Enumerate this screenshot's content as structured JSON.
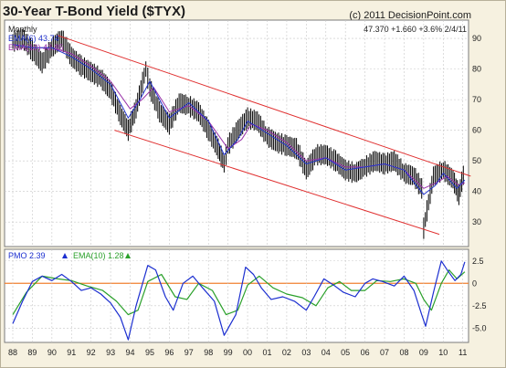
{
  "header": {
    "title": "30-Year T-Bond Yield ($TYX)",
    "copyright": "(c) 2011 DecisionPoint.com"
  },
  "price_panel": {
    "period": "Monthly",
    "ema_short_label": "EMA(6) 43.74",
    "ema_long_label": "EMA(10) 42.85",
    "quote": "47.370 +1.660 +3.6% 2/4/11"
  },
  "pmo_panel": {
    "pmo_label": "PMO 2.39",
    "ema_label": "EMA(10) 1.28"
  },
  "colors": {
    "background": "#f6f1e0",
    "plot_background": "#ffffff",
    "grid": "#c8c8c8",
    "price_bars": "#000000",
    "ema_short": "#2233cc",
    "ema_long": "#9933aa",
    "trend_channel": "#e03030",
    "pmo_line": "#1c2fd0",
    "pmo_signal": "#2aa02a",
    "zero_line": "#f08030"
  },
  "chart_data": [
    {
      "type": "line",
      "title": "30-Year T-Bond Yield ($TYX)",
      "subtitle": "Monthly",
      "x_tick_labels": [
        "88",
        "89",
        "90",
        "91",
        "92",
        "93",
        "94",
        "95",
        "96",
        "97",
        "98",
        "99",
        "00",
        "01",
        "02",
        "03",
        "04",
        "05",
        "06",
        "07",
        "08",
        "09",
        "10",
        "11"
      ],
      "y_tick_labels": [
        "30",
        "40",
        "50",
        "60",
        "70",
        "80",
        "90"
      ],
      "ylim": [
        22,
        96
      ],
      "grid": true,
      "series": [
        {
          "name": "$TYX",
          "x": [
            1988.0,
            1988.5,
            1989.0,
            1989.5,
            1990.0,
            1990.5,
            1991.0,
            1991.5,
            1992.0,
            1992.5,
            1993.0,
            1993.5,
            1993.9,
            1994.3,
            1994.8,
            1995.0,
            1995.5,
            1996.0,
            1996.5,
            1997.0,
            1997.5,
            1998.0,
            1998.5,
            1998.8,
            1999.0,
            1999.5,
            2000.0,
            2000.5,
            2001.0,
            2001.5,
            2002.0,
            2002.5,
            2003.0,
            2003.5,
            2004.0,
            2004.5,
            2005.0,
            2005.5,
            2006.0,
            2006.5,
            2007.0,
            2007.5,
            2008.0,
            2008.5,
            2008.9,
            2009.0,
            2009.5,
            2010.0,
            2010.5,
            2010.8,
            2011.1
          ],
          "values": [
            89,
            90,
            86,
            82,
            87,
            90,
            84,
            81,
            79,
            77,
            73,
            65,
            60,
            67,
            80,
            74,
            66,
            62,
            69,
            68,
            66,
            60,
            54,
            49,
            55,
            60,
            64,
            63,
            58,
            56,
            55,
            54,
            47,
            52,
            52,
            50,
            47,
            46,
            48,
            50,
            49,
            50,
            46,
            45,
            41,
            28,
            45,
            47,
            44,
            39,
            47.37
          ]
        },
        {
          "name": "EMA(6)",
          "x": [
            1988.0,
            1989.0,
            1990.0,
            1991.0,
            1992.0,
            1993.0,
            1993.9,
            1994.5,
            1995.0,
            1996.0,
            1997.0,
            1998.0,
            1998.8,
            1999.5,
            2000.0,
            2001.0,
            2002.0,
            2003.0,
            2004.0,
            2005.0,
            2006.0,
            2007.0,
            2008.0,
            2009.0,
            2009.6,
            2010.0,
            2010.7,
            2011.1
          ],
          "values": [
            88,
            87,
            87,
            84,
            80,
            75,
            64,
            70,
            76,
            64,
            69,
            63,
            52,
            57,
            63,
            59,
            55,
            49,
            51,
            47,
            48,
            49,
            47,
            39,
            42,
            46,
            41,
            43.74
          ]
        },
        {
          "name": "EMA(10)",
          "x": [
            1988.0,
            1989.0,
            1990.0,
            1991.0,
            1992.0,
            1993.0,
            1994.0,
            1994.6,
            1995.2,
            1996.0,
            1997.0,
            1998.0,
            1999.0,
            1999.7,
            2000.2,
            2001.0,
            2002.0,
            2003.0,
            2004.0,
            2005.0,
            2006.0,
            2007.0,
            2008.0,
            2009.0,
            2009.7,
            2010.2,
            2010.8,
            2011.1
          ],
          "values": [
            88,
            87,
            87,
            85,
            81,
            76,
            67,
            70,
            74,
            66,
            68,
            63,
            54,
            57,
            62,
            60,
            56,
            50,
            51,
            48,
            48,
            49,
            47,
            41,
            43,
            45,
            42,
            42.85
          ]
        },
        {
          "name": "Upper channel",
          "x": [
            1990.3,
            2011.4
          ],
          "values": [
            91,
            45
          ]
        },
        {
          "name": "Lower channel",
          "x": [
            1993.2,
            2009.8
          ],
          "values": [
            60,
            26
          ]
        }
      ]
    },
    {
      "type": "line",
      "title": "PMO",
      "x_tick_labels": [
        "88",
        "89",
        "90",
        "91",
        "92",
        "93",
        "94",
        "95",
        "96",
        "97",
        "98",
        "99",
        "00",
        "01",
        "02",
        "03",
        "04",
        "05",
        "06",
        "07",
        "08",
        "09",
        "10",
        "11"
      ],
      "y_tick_labels": [
        "2.5",
        "0",
        "-2.5",
        "-5.0"
      ],
      "ylim": [
        -6.6,
        3.8
      ],
      "grid": true,
      "series": [
        {
          "name": "PMO",
          "x": [
            1988.0,
            1988.5,
            1989.0,
            1989.5,
            1990.0,
            1990.5,
            1991.0,
            1991.5,
            1992.0,
            1992.5,
            1993.0,
            1993.5,
            1993.9,
            1994.3,
            1994.9,
            1995.3,
            1995.8,
            1996.2,
            1996.7,
            1997.2,
            1997.7,
            1998.3,
            1998.8,
            1999.4,
            1999.9,
            2000.3,
            2000.7,
            2001.2,
            2001.8,
            2002.4,
            2003.0,
            2003.4,
            2003.9,
            2004.4,
            2004.9,
            2005.5,
            2006.0,
            2006.4,
            2006.9,
            2007.5,
            2008.0,
            2008.5,
            2008.9,
            2009.1,
            2009.5,
            2009.9,
            2010.2,
            2010.6,
            2010.9,
            2011.1
          ],
          "values": [
            -4.5,
            -2.0,
            0.2,
            0.8,
            0.3,
            1.0,
            0.2,
            -0.8,
            -0.5,
            -1.2,
            -2.2,
            -3.8,
            -6.3,
            -2.5,
            2.0,
            1.5,
            -1.5,
            -3.0,
            0.0,
            0.8,
            -0.5,
            -2.0,
            -5.8,
            -3.5,
            1.8,
            1.0,
            -0.5,
            -1.8,
            -1.5,
            -2.0,
            -3.0,
            -1.5,
            0.5,
            -0.2,
            -1.0,
            -1.5,
            0.0,
            0.5,
            0.2,
            -0.3,
            0.8,
            -0.8,
            -3.5,
            -4.8,
            -1.0,
            2.5,
            1.5,
            0.3,
            1.0,
            2.39
          ]
        },
        {
          "name": "EMA(10)",
          "x": [
            1988.0,
            1988.7,
            1989.5,
            1990.3,
            1991.0,
            1991.8,
            1992.6,
            1993.3,
            1993.9,
            1994.4,
            1994.9,
            1995.6,
            1996.3,
            1996.9,
            1997.5,
            1998.2,
            1998.9,
            1999.5,
            2000.0,
            2000.6,
            2001.3,
            2002.0,
            2002.8,
            2003.5,
            2004.1,
            2004.7,
            2005.3,
            2006.0,
            2006.6,
            2007.3,
            2008.0,
            2008.6,
            2009.0,
            2009.4,
            2009.9,
            2010.3,
            2010.7,
            2011.1
          ],
          "values": [
            -3.5,
            -1.0,
            0.8,
            0.5,
            0.3,
            -0.3,
            -0.8,
            -2.0,
            -3.5,
            -3.0,
            0.2,
            1.0,
            -1.5,
            -1.8,
            0.0,
            -0.8,
            -3.5,
            -3.0,
            -0.2,
            0.8,
            -0.5,
            -1.2,
            -1.6,
            -2.5,
            -0.5,
            0.2,
            -0.8,
            -0.8,
            0.3,
            0.2,
            0.5,
            0.0,
            -1.8,
            -3.0,
            0.0,
            1.5,
            0.5,
            1.28
          ]
        }
      ]
    }
  ]
}
